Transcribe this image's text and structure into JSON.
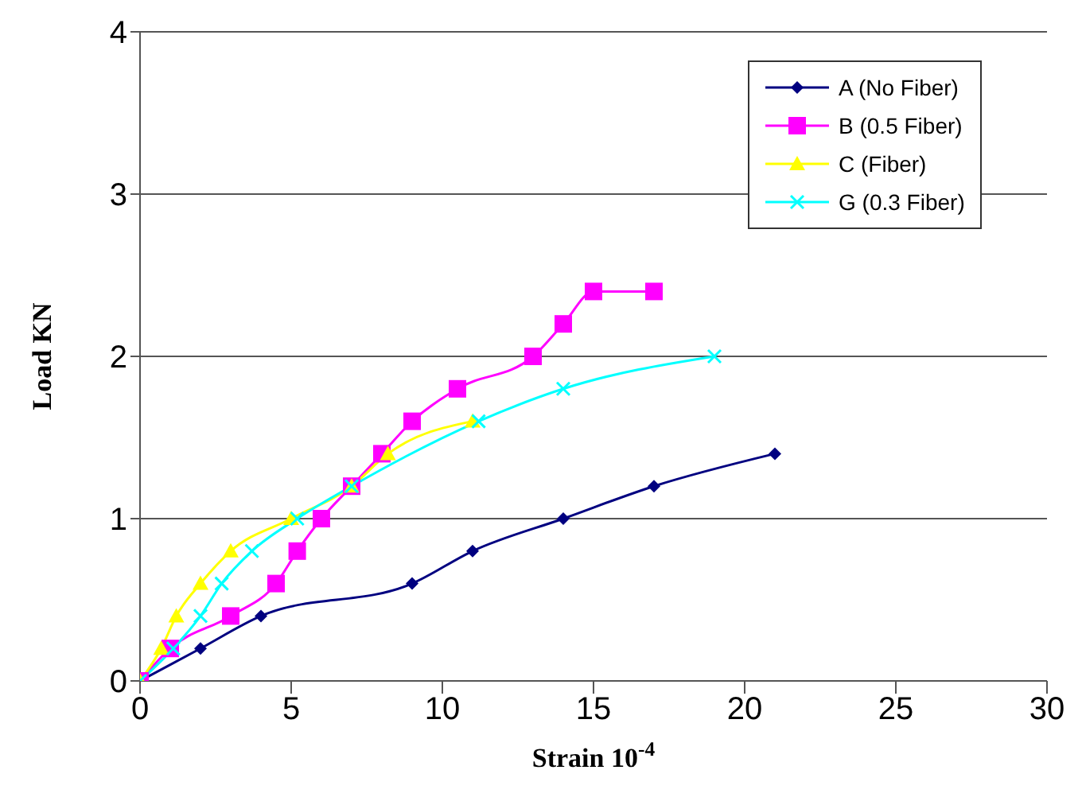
{
  "chart_data": {
    "type": "line",
    "xlabel": "Strain  10$^{-4}$",
    "ylabel": "Load KN",
    "xlim": [
      0,
      30
    ],
    "xticks": [
      0,
      5,
      10,
      15,
      20,
      25,
      30
    ],
    "ylim": [
      0,
      4
    ],
    "yticks": [
      0,
      1,
      2,
      3,
      4
    ],
    "grid": "y",
    "legend": "top right",
    "line_style": "solid",
    "series": [
      {
        "name": "A (No Fiber)",
        "color": "#000080",
        "marker": "diamond",
        "x": [
          0,
          2,
          4,
          9,
          11,
          14,
          17,
          21
        ],
        "values": [
          0,
          0.2,
          0.4,
          0.6,
          0.8,
          1.0,
          1.2,
          1.4
        ]
      },
      {
        "name": "B (0.5 Fiber)",
        "color": "#ff00ff",
        "marker": "square",
        "x": [
          0,
          1,
          3,
          4.5,
          5.2,
          6,
          7,
          8,
          9,
          10.5,
          13,
          14,
          15,
          17
        ],
        "values": [
          0,
          0.2,
          0.4,
          0.6,
          0.8,
          1.0,
          1.2,
          1.4,
          1.6,
          1.8,
          2.0,
          2.2,
          2.4,
          2.4
        ]
      },
      {
        "name": "C (Fiber)",
        "color": "#ffff00",
        "marker": "triangle",
        "x": [
          0,
          0.7,
          1.2,
          2,
          3,
          5,
          7,
          8.2,
          11
        ],
        "values": [
          0,
          0.2,
          0.4,
          0.6,
          0.8,
          1.0,
          1.2,
          1.4,
          1.6
        ]
      },
      {
        "name": "G (0.3 Fiber)",
        "color": "#00ffff",
        "marker": "cross",
        "x": [
          0,
          1.1,
          2,
          2.7,
          3.7,
          5.2,
          7,
          11.2,
          14,
          19
        ],
        "values": [
          0,
          0.2,
          0.4,
          0.6,
          0.8,
          1.0,
          1.2,
          1.6,
          1.8,
          2.0
        ]
      }
    ]
  }
}
